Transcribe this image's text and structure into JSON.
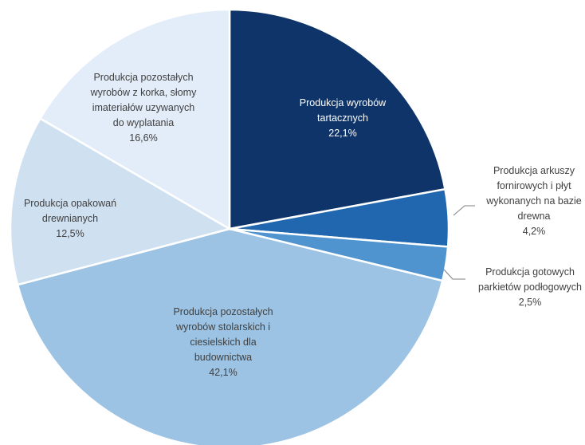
{
  "chart_data": {
    "type": "pie",
    "title": "",
    "slices": [
      {
        "label": "Produkcja wyrobów tartacznych",
        "value": 22.1,
        "value_label": "22,1%",
        "color": "#0e3469"
      },
      {
        "label": "Produkcja arkuszy fornirowych i płyt wykonanych na bazie drewna",
        "value": 4.2,
        "value_label": "4,2%",
        "color": "#2067b0"
      },
      {
        "label": "Produkcja gotowych parkietów podłogowych",
        "value": 2.5,
        "value_label": "2,5%",
        "color": "#4f93cf"
      },
      {
        "label": "Produkcja pozostałych wyrobów stolarskich i ciesielskich dla budownictwa",
        "value": 42.1,
        "value_label": "42,1%",
        "color": "#9cc3e3"
      },
      {
        "label": "Produkcja opakowań drewnianych",
        "value": 12.5,
        "value_label": "12,5%",
        "color": "#cfe0f1"
      },
      {
        "label": "Produkcja pozostałych wyrobów z korka, słomy imateriałów uzywanych do wyplatania",
        "value": 16.6,
        "value_label": "16,6%",
        "color": "#e3edf9"
      }
    ],
    "label_lines": [
      [
        "Produkcja wyrobów",
        "tartacznych"
      ],
      [
        "Produkcja arkuszy",
        "fornirowych i płyt",
        "wykonanych na bazie",
        "drewna"
      ],
      [
        "Produkcja gotowych",
        "parkietów podłogowych"
      ],
      [
        "Produkcja pozostałych",
        "wyrobów stolarskich i",
        "ciesielskich dla",
        "budownictwa"
      ],
      [
        "Produkcja opakowań",
        "drewnianych"
      ],
      [
        "Produkcja pozostałych",
        "wyrobów z korka, słomy",
        "imateriałów uzywanych",
        "do wyplatania"
      ]
    ],
    "legend": "none"
  }
}
